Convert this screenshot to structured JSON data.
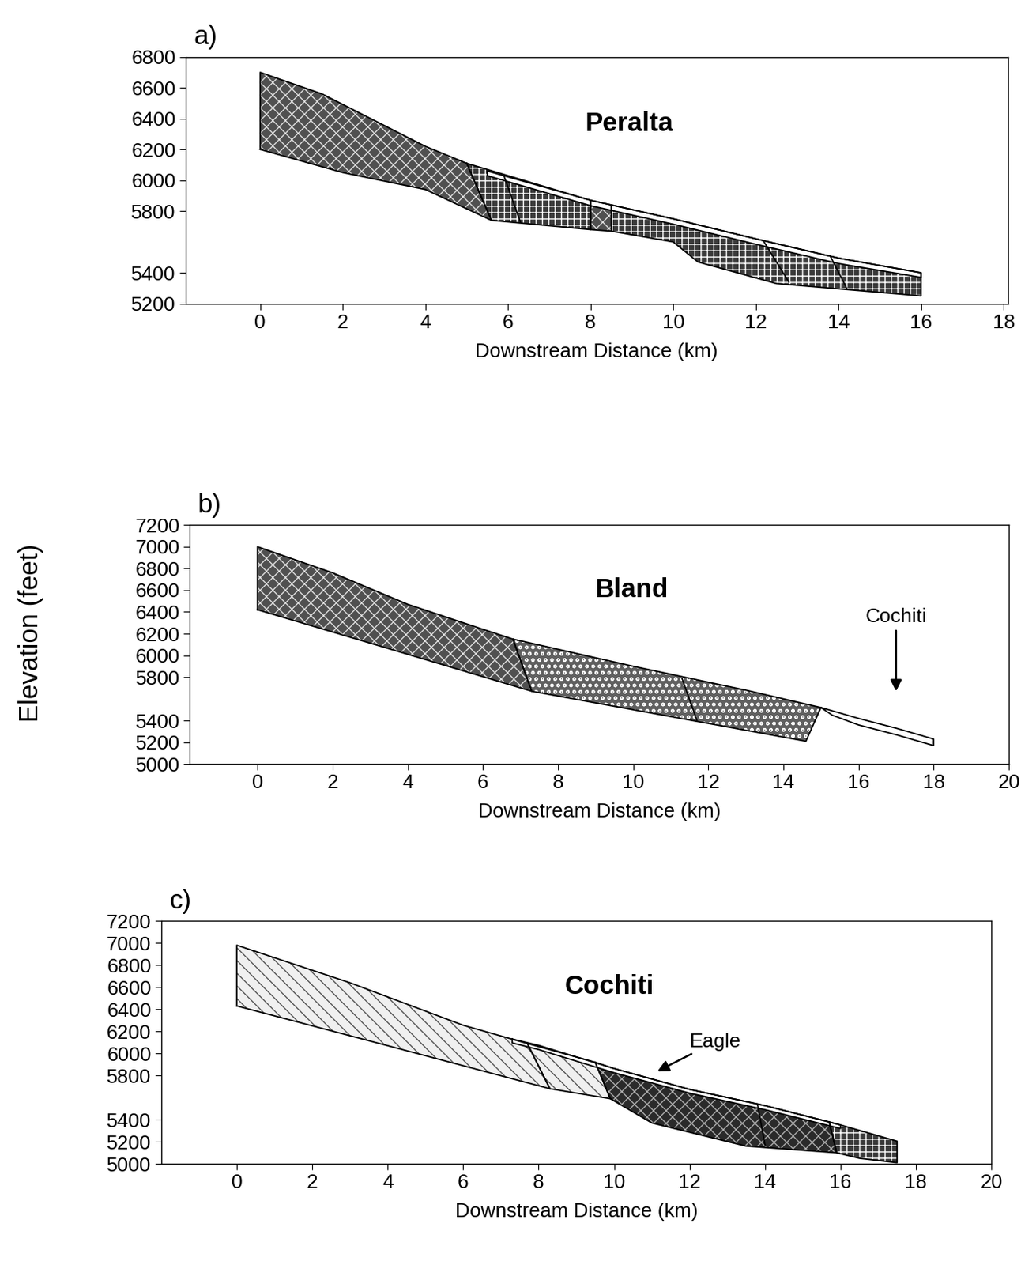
{
  "ylabel": "Elevation (feet)",
  "chart_data": [
    {
      "type": "area",
      "panel_label": "a)",
      "title": "Peralta",
      "xlabel": "Downstream Distance (km)",
      "xlim": [
        -1.8,
        18.1
      ],
      "xticks": [
        0,
        2,
        4,
        6,
        8,
        10,
        12,
        14,
        16,
        18
      ],
      "ylim": [
        5200,
        6800
      ],
      "yticks": [
        5200,
        5400,
        5800,
        6000,
        6200,
        6400,
        6600,
        6800
      ],
      "series": [
        {
          "color": "#505050",
          "x": [
            0,
            0,
            1.5,
            4,
            5,
            5.6,
            4,
            2
          ],
          "y": [
            6200,
            6700,
            6560,
            6220,
            6110,
            5740,
            5940,
            6050
          ]
        },
        {
          "color": "#3a3a3a",
          "x": [
            5,
            8,
            8,
            5.6
          ],
          "y": [
            6110,
            5870,
            5680,
            5740
          ]
        },
        {
          "color": "#505050",
          "x": [
            8,
            8.5,
            8.5,
            8
          ],
          "y": [
            5870,
            5840,
            5670,
            5680
          ]
        },
        {
          "color": "#3a3a3a",
          "x": [
            8.5,
            10,
            12,
            14,
            16,
            16,
            12.5,
            10.6,
            10,
            8.5
          ],
          "y": [
            5840,
            5750,
            5620,
            5495,
            5400,
            5250,
            5330,
            5470,
            5600,
            5670
          ]
        },
        {
          "color": "#ffffff",
          "x": [
            5.5,
            8,
            10,
            12,
            14,
            16,
            16,
            14,
            12,
            10,
            8,
            5.5
          ],
          "y": [
            6060,
            5870,
            5750,
            5620,
            5495,
            5400,
            5370,
            5460,
            5585,
            5715,
            5835,
            6030
          ]
        }
      ],
      "lines": [
        {
          "x": [
            5.9,
            6.3
          ],
          "y": [
            6030,
            5730
          ]
        },
        {
          "x": [
            12.2,
            12.8
          ],
          "y": [
            5600,
            5340
          ]
        },
        {
          "x": [
            13.8,
            14.2
          ],
          "y": [
            5510,
            5300
          ]
        }
      ],
      "annotations": []
    },
    {
      "type": "area",
      "panel_label": "b)",
      "title": "Bland",
      "xlabel": "Downstream Distance (km)",
      "xlim": [
        -1.8,
        20
      ],
      "xticks": [
        0,
        2,
        4,
        6,
        8,
        10,
        12,
        14,
        16,
        18,
        20
      ],
      "ylim": [
        5000,
        7200
      ],
      "yticks": [
        5000,
        5200,
        5400,
        5800,
        6000,
        6200,
        6400,
        6600,
        6800,
        7000,
        7200
      ],
      "series": [
        {
          "color": "#505050",
          "x": [
            0,
            0,
            2,
            4,
            6,
            6.8,
            7.3,
            4,
            2
          ],
          "y": [
            6420,
            7000,
            6760,
            6470,
            6240,
            6150,
            5670,
            6010,
            6215
          ]
        },
        {
          "color": "#606060",
          "x": [
            6.8,
            10,
            13,
            15,
            14.6,
            7.3
          ],
          "y": [
            6150,
            5900,
            5680,
            5520,
            5210,
            5670
          ]
        },
        {
          "color": "#ffffff",
          "x": [
            15,
            16,
            17,
            18,
            18,
            17,
            16,
            15.3
          ],
          "y": [
            5520,
            5420,
            5330,
            5230,
            5170,
            5270,
            5360,
            5450
          ]
        }
      ],
      "lines": [
        {
          "x": [
            11.3,
            11.7
          ],
          "y": [
            5790,
            5400
          ]
        }
      ],
      "annotations": [
        {
          "text": "Cochiti",
          "x": 17,
          "y": 5650
        }
      ]
    },
    {
      "type": "area",
      "panel_label": "c)",
      "title": "Cochiti",
      "xlabel": "Downstream Distance (km)",
      "xlim": [
        -2,
        20
      ],
      "xticks": [
        0,
        2,
        4,
        6,
        8,
        10,
        12,
        14,
        16,
        18,
        20
      ],
      "ylim": [
        5000,
        7200
      ],
      "yticks": [
        5000,
        5200,
        5400,
        5800,
        6000,
        6200,
        6400,
        6600,
        6800,
        7000,
        7200
      ],
      "series": [
        {
          "color": "#f0f0f0",
          "x": [
            0,
            0,
            3,
            6,
            7.7,
            8.3,
            4
          ],
          "y": [
            6430,
            6980,
            6640,
            6255,
            6090,
            5680,
            6070
          ]
        },
        {
          "color": "#f0f0f0",
          "x": [
            7.7,
            9.5,
            9.9,
            8.3
          ],
          "y": [
            6090,
            5920,
            5590,
            5680
          ]
        },
        {
          "color": "#2a2a2a",
          "x": [
            9.5,
            10,
            12,
            14,
            15.7,
            15.9,
            13.5,
            11,
            9.9
          ],
          "y": [
            5920,
            5863,
            5674,
            5527,
            5380,
            5100,
            5160,
            5370,
            5590
          ]
        },
        {
          "color": "#3a3a3a",
          "x": [
            15.7,
            16,
            17.5,
            17.5,
            16.5,
            15.9
          ],
          "y": [
            5380,
            5352,
            5205,
            5010,
            5050,
            5100
          ]
        },
        {
          "color": "#ffffff",
          "x": [
            7.3,
            8,
            10,
            12,
            14,
            16,
            16,
            14,
            12,
            10,
            8,
            7.3
          ],
          "y": [
            6130,
            6073,
            5863,
            5674,
            5527,
            5352,
            5320,
            5490,
            5640,
            5825,
            6035,
            6095
          ]
        }
      ],
      "lines": [
        {
          "x": [
            13.8,
            14.0
          ],
          "y": [
            5540,
            5170
          ]
        }
      ],
      "annotations": [
        {
          "text": "Eagle",
          "x": 11.1,
          "y": 5830
        }
      ]
    }
  ]
}
